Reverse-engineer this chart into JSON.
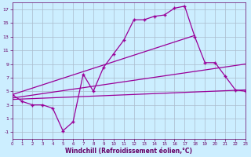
{
  "title": "",
  "xlabel": "Windchill (Refroidissement éolien,°C)",
  "bg_color": "#cceeff",
  "grid_color": "#aabbcc",
  "line_color": "#990099",
  "axis_label_color": "#660066",
  "xmin": 0,
  "xmax": 23,
  "ymin": -2,
  "ymax": 18,
  "yticks": [
    -1,
    1,
    3,
    5,
    7,
    9,
    11,
    13,
    15,
    17
  ],
  "xticks": [
    0,
    1,
    2,
    3,
    4,
    5,
    6,
    7,
    8,
    9,
    10,
    11,
    12,
    13,
    14,
    15,
    16,
    17,
    18,
    19,
    20,
    21,
    22,
    23
  ],
  "line1_x": [
    0,
    1,
    2,
    3,
    4,
    5,
    6,
    7,
    8,
    9,
    10,
    11,
    12,
    13,
    14,
    15,
    16,
    17,
    18,
    19,
    20,
    21,
    22,
    23
  ],
  "line1_y": [
    4.5,
    3.5,
    3.0,
    3.0,
    2.5,
    -0.8,
    0.5,
    7.5,
    5.0,
    8.5,
    10.5,
    12.5,
    15.5,
    15.5,
    16.0,
    16.2,
    17.2,
    17.5,
    13.0,
    9.2,
    9.2,
    7.2,
    5.2,
    5.0
  ],
  "line2_x": [
    0,
    18
  ],
  "line2_y": [
    4.5,
    13.2
  ],
  "line3_x": [
    0,
    23
  ],
  "line3_y": [
    4.0,
    9.0
  ],
  "line4_x": [
    0,
    23
  ],
  "line4_y": [
    3.8,
    5.2
  ]
}
